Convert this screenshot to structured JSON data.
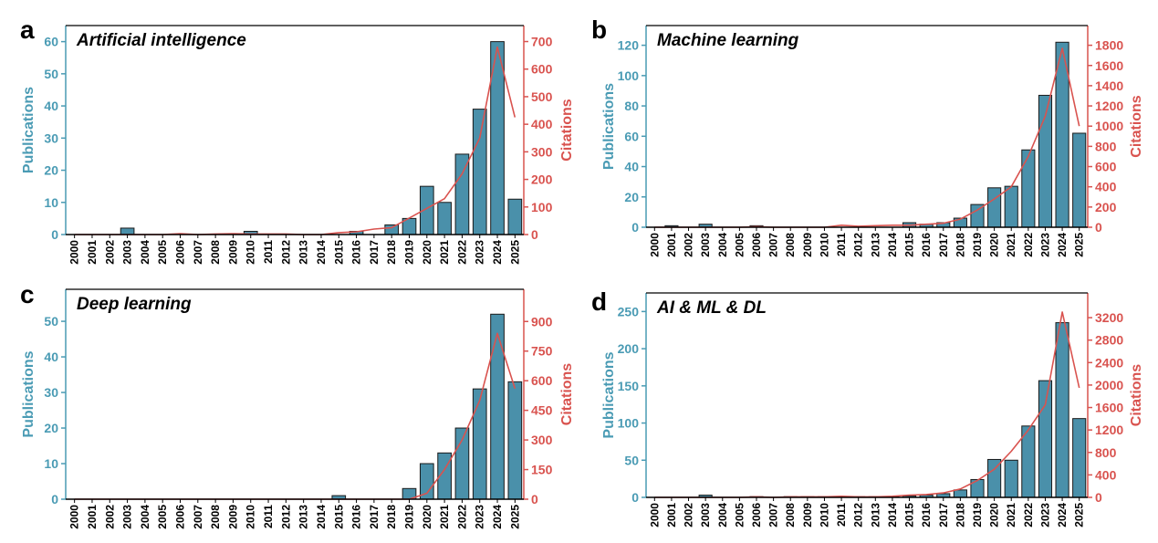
{
  "chart_data": [
    {
      "panel": "a",
      "title": "Artificial intelligence",
      "type": "bar",
      "categories": [
        "2000",
        "2001",
        "2002",
        "2003",
        "2004",
        "2005",
        "2006",
        "2007",
        "2008",
        "2009",
        "2010",
        "2011",
        "2012",
        "2013",
        "2014",
        "2015",
        "2016",
        "2017",
        "2018",
        "2019",
        "2020",
        "2021",
        "2022",
        "2023",
        "2024",
        "2025"
      ],
      "series": [
        {
          "name": "Publications",
          "axis": "left",
          "type": "bar",
          "color": "#4a90aa",
          "values": [
            0,
            0,
            0,
            2,
            0,
            0,
            0,
            0,
            0,
            0,
            1,
            0,
            0,
            0,
            0,
            0,
            1,
            0,
            3,
            5,
            15,
            10,
            25,
            39,
            60,
            11
          ]
        },
        {
          "name": "Citations",
          "axis": "right",
          "type": "line",
          "color": "#d9534f",
          "values": [
            0,
            0,
            0,
            0,
            0,
            0,
            3,
            0,
            2,
            3,
            2,
            2,
            2,
            0,
            0,
            7,
            10,
            20,
            25,
            60,
            95,
            130,
            220,
            350,
            680,
            425
          ]
        }
      ],
      "ylabel_left": "Publications",
      "ylim_left": [
        0,
        65
      ],
      "yticks_left": [
        0,
        10,
        20,
        30,
        40,
        50,
        60
      ],
      "ylabel_right": "Citations",
      "ylim_right": [
        0,
        758
      ],
      "yticks_right": [
        0,
        100,
        200,
        300,
        400,
        500,
        600,
        700
      ]
    },
    {
      "panel": "b",
      "title": "Machine learning",
      "type": "bar",
      "categories": [
        "2000",
        "2001",
        "2002",
        "2003",
        "2004",
        "2005",
        "2006",
        "2007",
        "2008",
        "2009",
        "2010",
        "2011",
        "2012",
        "2013",
        "2014",
        "2015",
        "2016",
        "2017",
        "2018",
        "2019",
        "2020",
        "2021",
        "2022",
        "2023",
        "2024",
        "2025"
      ],
      "series": [
        {
          "name": "Publications",
          "axis": "left",
          "type": "bar",
          "color": "#4a90aa",
          "values": [
            0,
            1,
            0,
            2,
            0,
            0,
            1,
            0,
            0,
            0,
            0,
            0,
            0,
            0,
            0,
            3,
            2,
            3,
            6,
            15,
            26,
            27,
            51,
            87,
            122,
            62
          ]
        },
        {
          "name": "Citations",
          "axis": "right",
          "type": "line",
          "color": "#d9534f",
          "values": [
            0,
            0,
            0,
            0,
            0,
            0,
            5,
            0,
            0,
            0,
            0,
            20,
            10,
            15,
            20,
            20,
            30,
            40,
            80,
            170,
            280,
            400,
            700,
            1100,
            1770,
            1000
          ]
        }
      ],
      "ylabel_left": "Publications",
      "ylim_left": [
        0,
        133
      ],
      "yticks_left": [
        0,
        20,
        40,
        60,
        80,
        100,
        120
      ],
      "ylabel_right": "Citations",
      "ylim_right": [
        0,
        1995
      ],
      "yticks_right": [
        0,
        200,
        400,
        600,
        800,
        1000,
        1200,
        1400,
        1600,
        1800
      ]
    },
    {
      "panel": "c",
      "title": "Deep learning",
      "type": "bar",
      "categories": [
        "2000",
        "2001",
        "2002",
        "2003",
        "2004",
        "2005",
        "2006",
        "2007",
        "2008",
        "2009",
        "2010",
        "2011",
        "2012",
        "2013",
        "2014",
        "2015",
        "2016",
        "2017",
        "2018",
        "2019",
        "2020",
        "2021",
        "2022",
        "2023",
        "2024",
        "2025"
      ],
      "series": [
        {
          "name": "Publications",
          "axis": "left",
          "type": "bar",
          "color": "#4a90aa",
          "values": [
            0,
            0,
            0,
            0,
            0,
            0,
            0,
            0,
            0,
            0,
            0,
            0,
            0,
            0,
            0,
            1,
            0,
            0,
            0,
            3,
            10,
            13,
            20,
            31,
            52,
            33
          ]
        },
        {
          "name": "Citations",
          "axis": "right",
          "type": "line",
          "color": "#d9534f",
          "values": [
            0,
            0,
            0,
            0,
            0,
            0,
            0,
            0,
            0,
            0,
            0,
            0,
            0,
            0,
            0,
            0,
            0,
            0,
            0,
            0,
            30,
            150,
            300,
            500,
            840,
            560
          ]
        }
      ],
      "ylabel_left": "Publications",
      "ylim_left": [
        0,
        59
      ],
      "yticks_left": [
        0,
        10,
        20,
        30,
        40,
        50
      ],
      "ylabel_right": "Citations",
      "ylim_right": [
        0,
        1063
      ],
      "yticks_right": [
        0,
        150,
        300,
        450,
        600,
        750,
        900
      ]
    },
    {
      "panel": "d",
      "title": "AI & ML & DL",
      "type": "bar",
      "categories": [
        "2000",
        "2001",
        "2002",
        "2003",
        "2004",
        "2005",
        "2006",
        "2007",
        "2008",
        "2009",
        "2010",
        "2011",
        "2012",
        "2013",
        "2014",
        "2015",
        "2016",
        "2017",
        "2018",
        "2019",
        "2020",
        "2021",
        "2022",
        "2023",
        "2024",
        "2025"
      ],
      "series": [
        {
          "name": "Publications",
          "axis": "left",
          "type": "bar",
          "color": "#4a90aa",
          "values": [
            0,
            0,
            0,
            3,
            0,
            0,
            1,
            0,
            1,
            1,
            1,
            1,
            1,
            1,
            1,
            2,
            3,
            5,
            10,
            24,
            51,
            50,
            96,
            157,
            235,
            106
          ]
        },
        {
          "name": "Citations",
          "axis": "right",
          "type": "line",
          "color": "#d9534f",
          "values": [
            0,
            0,
            0,
            0,
            0,
            0,
            10,
            0,
            10,
            10,
            10,
            20,
            10,
            10,
            20,
            40,
            50,
            80,
            150,
            300,
            500,
            820,
            1200,
            1650,
            3300,
            1950
          ]
        }
      ],
      "ylabel_left": "Publications",
      "ylim_left": [
        0,
        275
      ],
      "yticks_left": [
        0,
        50,
        100,
        150,
        200,
        250
      ],
      "ylabel_right": "Citations",
      "ylim_right": [
        0,
        3640
      ],
      "yticks_right": [
        0,
        400,
        800,
        1200,
        1600,
        2000,
        2400,
        2800,
        3200
      ]
    }
  ]
}
